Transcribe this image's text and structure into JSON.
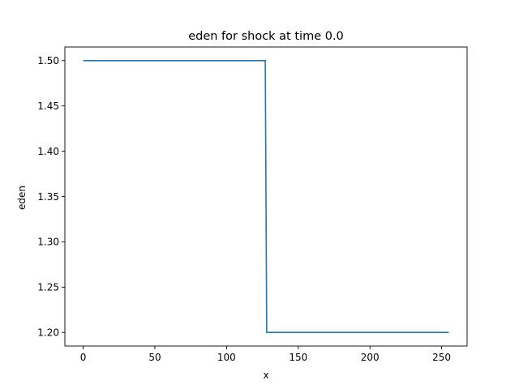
{
  "chart_data": {
    "type": "line",
    "title": "eden for shock at time 0.0",
    "xlabel": "x",
    "ylabel": "eden",
    "xlim": [
      -12.75,
      267.75
    ],
    "ylim": [
      1.185,
      1.515
    ],
    "xticks": [
      0,
      50,
      100,
      150,
      200,
      250
    ],
    "xtick_labels": [
      "0",
      "50",
      "100",
      "150",
      "200",
      "250"
    ],
    "yticks": [
      1.2,
      1.25,
      1.3,
      1.35,
      1.4,
      1.45,
      1.5
    ],
    "ytick_labels": [
      "1.20",
      "1.25",
      "1.30",
      "1.35",
      "1.40",
      "1.45",
      "1.50"
    ],
    "grid": false,
    "series": [
      {
        "color": "#1f77b4",
        "x": [
          0,
          127,
          128,
          255
        ],
        "y": [
          1.5,
          1.5,
          1.2,
          1.2
        ]
      }
    ]
  }
}
